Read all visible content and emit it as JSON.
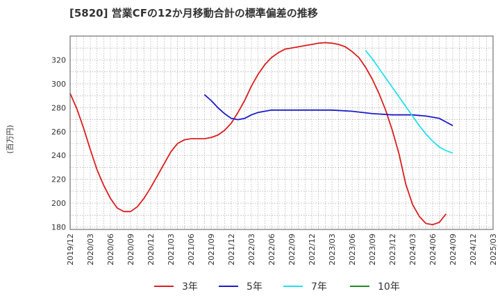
{
  "chart_data": {
    "type": "line",
    "title": "[5820]  営業CFの12か月移動合計の標準偏差の推移",
    "ylabel": "(百万円)",
    "xlabel": "",
    "ylim": [
      178,
      340
    ],
    "yticks": [
      180,
      200,
      220,
      240,
      260,
      280,
      300,
      320
    ],
    "x_ticks": [
      "2019/12",
      "2020/03",
      "2020/06",
      "2020/09",
      "2020/12",
      "2021/03",
      "2021/06",
      "2021/09",
      "2021/12",
      "2022/03",
      "2022/06",
      "2022/09",
      "2022/12",
      "2023/03",
      "2023/06",
      "2023/09",
      "2023/12",
      "2024/03",
      "2024/06",
      "2024/09",
      "2024/12",
      "2025/03"
    ],
    "grid": true,
    "legend_position": "bottom",
    "series": [
      {
        "name": "3年",
        "color": "#dd1c1c",
        "points": [
          [
            "2019/12",
            292
          ],
          [
            "2020/01",
            279
          ],
          [
            "2020/02",
            263
          ],
          [
            "2020/03",
            245
          ],
          [
            "2020/04",
            228
          ],
          [
            "2020/05",
            215
          ],
          [
            "2020/06",
            204
          ],
          [
            "2020/07",
            196
          ],
          [
            "2020/08",
            193
          ],
          [
            "2020/09",
            193
          ],
          [
            "2020/10",
            197
          ],
          [
            "2020/11",
            204
          ],
          [
            "2020/12",
            213
          ],
          [
            "2021/01",
            223
          ],
          [
            "2021/02",
            233
          ],
          [
            "2021/03",
            243
          ],
          [
            "2021/04",
            250
          ],
          [
            "2021/05",
            253
          ],
          [
            "2021/06",
            254
          ],
          [
            "2021/07",
            254
          ],
          [
            "2021/08",
            254
          ],
          [
            "2021/09",
            255
          ],
          [
            "2021/10",
            257
          ],
          [
            "2021/11",
            261
          ],
          [
            "2021/12",
            267
          ],
          [
            "2022/01",
            276
          ],
          [
            "2022/02",
            286
          ],
          [
            "2022/03",
            298
          ],
          [
            "2022/04",
            308
          ],
          [
            "2022/05",
            316
          ],
          [
            "2022/06",
            322
          ],
          [
            "2022/07",
            326
          ],
          [
            "2022/08",
            329
          ],
          [
            "2022/09",
            330
          ],
          [
            "2022/10",
            331
          ],
          [
            "2022/11",
            332
          ],
          [
            "2022/12",
            333
          ],
          [
            "2023/01",
            334
          ],
          [
            "2023/02",
            334.5
          ],
          [
            "2023/03",
            334
          ],
          [
            "2023/04",
            333
          ],
          [
            "2023/05",
            331
          ],
          [
            "2023/06",
            327
          ],
          [
            "2023/07",
            322
          ],
          [
            "2023/08",
            314
          ],
          [
            "2023/09",
            304
          ],
          [
            "2023/10",
            292
          ],
          [
            "2023/11",
            278
          ],
          [
            "2023/12",
            261
          ],
          [
            "2024/01",
            241
          ],
          [
            "2024/02",
            216
          ],
          [
            "2024/03",
            199
          ],
          [
            "2024/04",
            189
          ],
          [
            "2024/05",
            183
          ],
          [
            "2024/06",
            182
          ],
          [
            "2024/07",
            184
          ],
          [
            "2024/08",
            191
          ]
        ]
      },
      {
        "name": "5年",
        "color": "#1a1acc",
        "points": [
          [
            "2021/08",
            291
          ],
          [
            "2021/09",
            286
          ],
          [
            "2021/10",
            280
          ],
          [
            "2021/11",
            275
          ],
          [
            "2021/12",
            271
          ],
          [
            "2022/01",
            270
          ],
          [
            "2022/02",
            271
          ],
          [
            "2022/03",
            274
          ],
          [
            "2022/04",
            276
          ],
          [
            "2022/05",
            277
          ],
          [
            "2022/06",
            278
          ],
          [
            "2022/07",
            278
          ],
          [
            "2022/08",
            278
          ],
          [
            "2022/09",
            278
          ],
          [
            "2022/10",
            278
          ],
          [
            "2022/11",
            278
          ],
          [
            "2022/12",
            278
          ],
          [
            "2023/03",
            278
          ],
          [
            "2023/06",
            277
          ],
          [
            "2023/09",
            275
          ],
          [
            "2023/12",
            274
          ],
          [
            "2024/03",
            274
          ],
          [
            "2024/05",
            273
          ],
          [
            "2024/07",
            271
          ],
          [
            "2024/08",
            268
          ],
          [
            "2024/09",
            265
          ]
        ]
      },
      {
        "name": "7年",
        "color": "#22e0ee",
        "points": [
          [
            "2023/08",
            328
          ],
          [
            "2023/09",
            321
          ],
          [
            "2023/10",
            313
          ],
          [
            "2023/11",
            305
          ],
          [
            "2023/12",
            297
          ],
          [
            "2024/01",
            289
          ],
          [
            "2024/02",
            281
          ],
          [
            "2024/03",
            273
          ],
          [
            "2024/04",
            265
          ],
          [
            "2024/05",
            258
          ],
          [
            "2024/06",
            252
          ],
          [
            "2024/07",
            247
          ],
          [
            "2024/08",
            244
          ],
          [
            "2024/09",
            242
          ]
        ]
      },
      {
        "name": "10年",
        "color": "#1f8a1f",
        "points": []
      }
    ]
  }
}
